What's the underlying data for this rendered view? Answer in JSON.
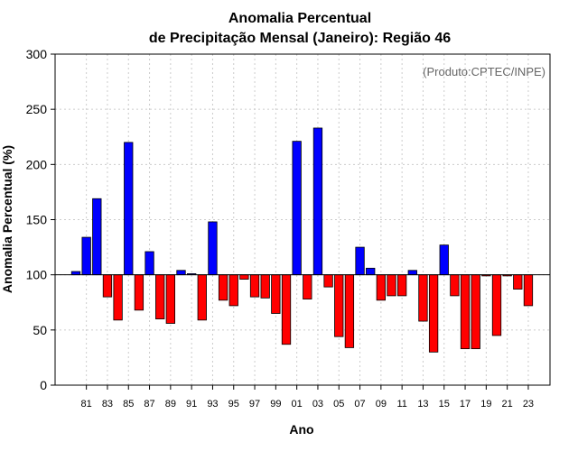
{
  "chart_data": {
    "type": "bar",
    "title_line1": "Anomalia Percentual",
    "title_line2": "de Precipitação Mensal (Janeiro): Região 46",
    "xlabel": "Ano",
    "ylabel": "Anomalia Percentual (%)",
    "credit": "(Produto:CPTEC/INPE)",
    "baseline": 100,
    "ylim": [
      0,
      300
    ],
    "yticks": [
      0,
      50,
      100,
      150,
      200,
      250,
      300
    ],
    "grid": true,
    "x_tick_labels": [
      "81",
      "83",
      "85",
      "87",
      "89",
      "91",
      "93",
      "95",
      "97",
      "99",
      "01",
      "03",
      "05",
      "07",
      "09",
      "11",
      "13",
      "15",
      "17",
      "19",
      "21",
      "23"
    ],
    "categories": [
      "1980",
      "1981",
      "1982",
      "1983",
      "1984",
      "1985",
      "1986",
      "1987",
      "1988",
      "1989",
      "1990",
      "1991",
      "1992",
      "1993",
      "1994",
      "1995",
      "1996",
      "1997",
      "1998",
      "1999",
      "2000",
      "2001",
      "2002",
      "2003",
      "2004",
      "2005",
      "2006",
      "2007",
      "2008",
      "2009",
      "2010",
      "2011",
      "2012",
      "2013",
      "2014",
      "2015",
      "2016",
      "2017",
      "2018",
      "2019",
      "2020",
      "2021",
      "2022",
      "2023",
      "2024"
    ],
    "values": [
      103,
      134,
      169,
      80,
      59,
      220,
      68,
      121,
      60,
      56,
      104,
      101,
      59,
      148,
      77,
      72,
      96,
      80,
      79,
      65,
      37,
      221,
      78,
      233,
      89,
      44,
      34,
      125,
      106,
      77,
      81,
      81,
      104,
      58,
      30,
      127,
      81,
      33,
      33,
      99,
      45,
      99,
      87,
      72,
      0
    ],
    "colors": {
      "above": "#0000ff",
      "below": "#ff0000",
      "outline": "#000000",
      "grid": "#cccccc"
    }
  }
}
